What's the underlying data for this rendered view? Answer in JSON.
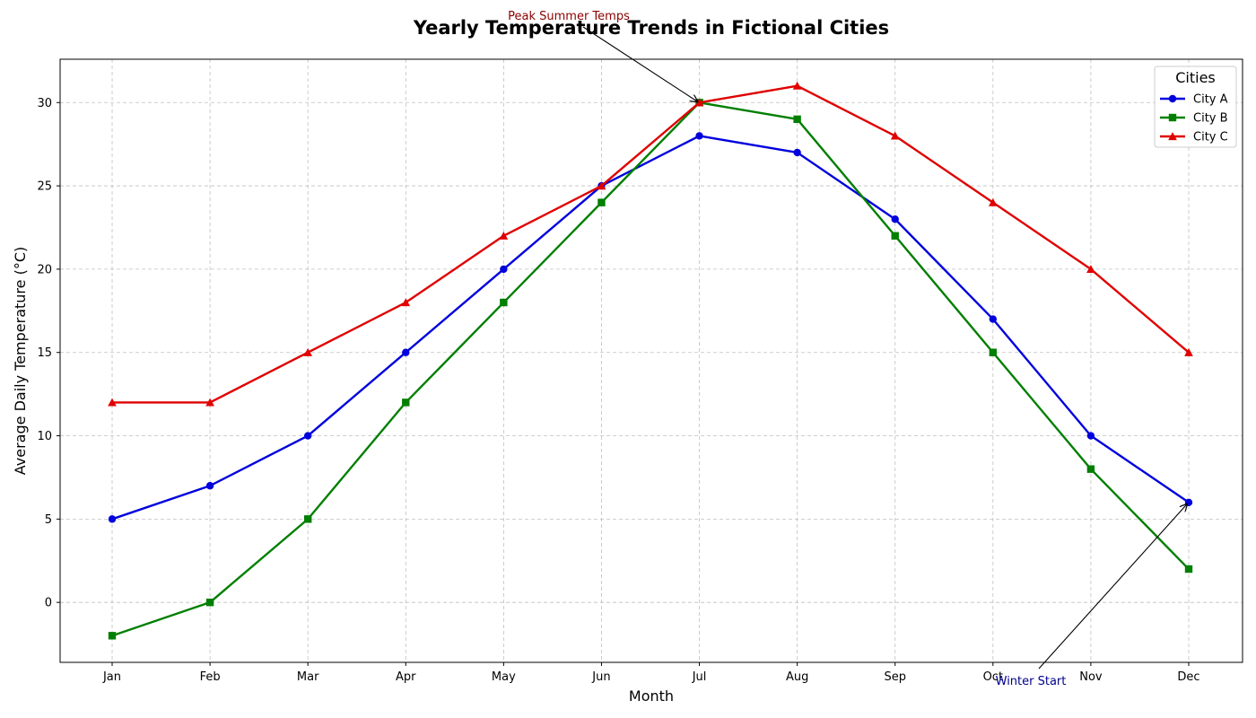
{
  "chart_data": {
    "type": "line",
    "title": "Yearly Temperature Trends in Fictional Cities",
    "xlabel": "Month",
    "ylabel": "Average Daily Temperature (°C)",
    "categories": [
      "Jan",
      "Feb",
      "Mar",
      "Apr",
      "May",
      "Jun",
      "Jul",
      "Aug",
      "Sep",
      "Oct",
      "Nov",
      "Dec"
    ],
    "ylim": [
      -3.6,
      32.6
    ],
    "yticks": [
      0,
      5,
      10,
      15,
      20,
      25,
      30
    ],
    "grid": true,
    "legend": {
      "title": "Cities",
      "placement": "top-right"
    },
    "series": [
      {
        "name": "City A",
        "color": "#0000dd",
        "marker": "circle",
        "values": [
          5,
          7,
          10,
          15,
          20,
          25,
          28,
          27,
          23,
          17,
          10,
          6
        ]
      },
      {
        "name": "City B",
        "color": "#007f00",
        "marker": "square",
        "values": [
          -2,
          0,
          5,
          12,
          18,
          24,
          30,
          29,
          22,
          15,
          8,
          2
        ]
      },
      {
        "name": "City C",
        "color": "#e00000",
        "marker": "triangle",
        "values": [
          12,
          12,
          15,
          18,
          22,
          25,
          30,
          31,
          28,
          24,
          20,
          15
        ]
      }
    ],
    "annotations": [
      {
        "text": "Peak Summer Temps",
        "color": "#8b0000",
        "target_category": "Jul",
        "target_value": 30
      },
      {
        "text": "Winter Start",
        "color": "#00008b",
        "target_category": "Dec",
        "target_value": 6
      }
    ]
  }
}
